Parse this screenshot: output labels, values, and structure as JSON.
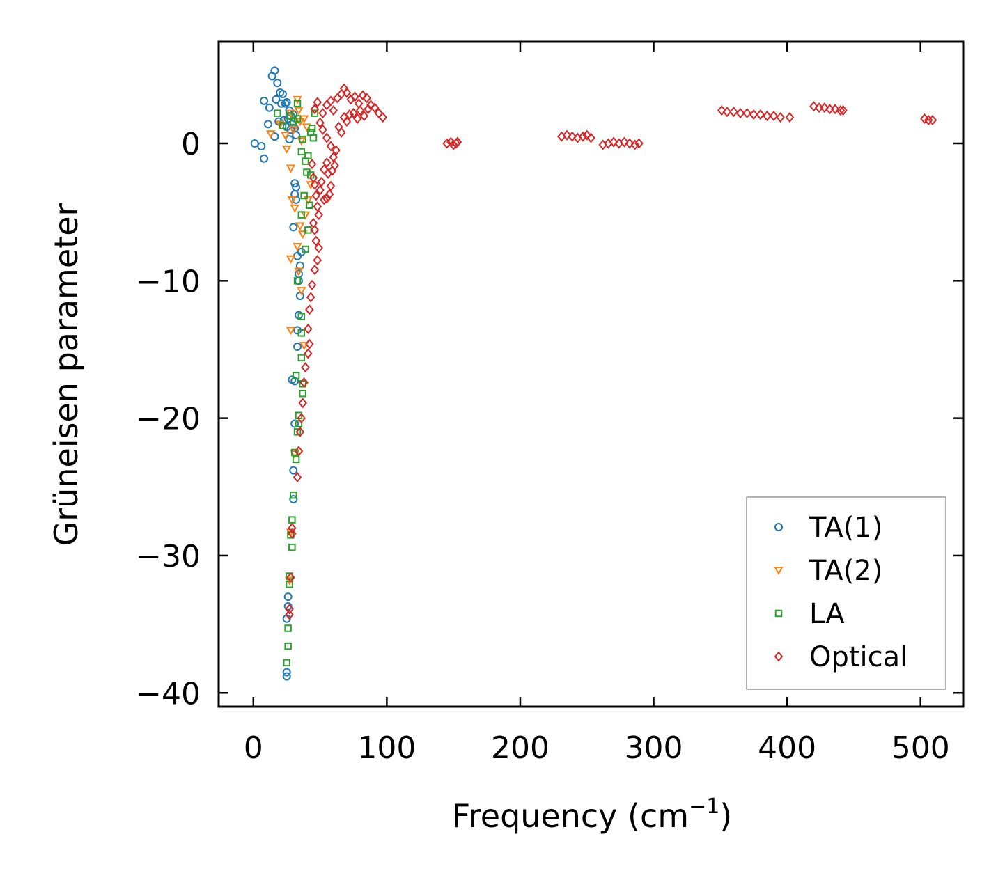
{
  "chart_data": {
    "type": "scatter",
    "title": "",
    "xlabel": "Frequency (cm",
    "xlabel_sup": "−1",
    "xlabel_close": ")",
    "ylabel": "Grüneisen parameter",
    "xlim": [
      -26,
      532
    ],
    "ylim": [
      -41,
      7.4
    ],
    "xticks": [
      0,
      100,
      200,
      300,
      400,
      500
    ],
    "xtick_labels": [
      "0",
      "100",
      "200",
      "300",
      "400",
      "500"
    ],
    "yticks": [
      -40,
      -30,
      -20,
      -10,
      0
    ],
    "ytick_labels": [
      "−40",
      "−30",
      "−20",
      "−10",
      "0"
    ],
    "grid": false,
    "legend_position": "lower-right",
    "series": [
      {
        "name": "TA(1)",
        "marker": "circle",
        "color": "#1f77b4",
        "points": [
          [
            1,
            0
          ],
          [
            6,
            -0.2
          ],
          [
            8,
            -1.1
          ],
          [
            8,
            3.1
          ],
          [
            11,
            1.4
          ],
          [
            12,
            2.6
          ],
          [
            14,
            4.9
          ],
          [
            16,
            5.3
          ],
          [
            16,
            0.5
          ],
          [
            17,
            3.2
          ],
          [
            18,
            4.4
          ],
          [
            19,
            1.6
          ],
          [
            20,
            3.7
          ],
          [
            21,
            2.9
          ],
          [
            22,
            3.6
          ],
          [
            23,
            1.7
          ],
          [
            24,
            2.9
          ],
          [
            25,
            1.2
          ],
          [
            25,
            3.0
          ],
          [
            26,
            1.8
          ],
          [
            27,
            0.3
          ],
          [
            27,
            2.4
          ],
          [
            28,
            1.0
          ],
          [
            28,
            2.0
          ],
          [
            29,
            1.4
          ],
          [
            30,
            2.1
          ],
          [
            31,
            1.1
          ],
          [
            32,
            0.6
          ],
          [
            30,
            -6.1
          ],
          [
            31,
            -2.9
          ],
          [
            31,
            -3.7
          ],
          [
            32,
            -3.2
          ],
          [
            32,
            -4.1
          ],
          [
            33,
            -8.2
          ],
          [
            34,
            -9.5
          ],
          [
            34,
            -10.0
          ],
          [
            35,
            -8.9
          ],
          [
            35,
            -11.1
          ],
          [
            36,
            -7.9
          ],
          [
            34,
            -12.5
          ],
          [
            33,
            -13.6
          ],
          [
            33,
            -14.8
          ],
          [
            29,
            -17.2
          ],
          [
            31,
            -17.3
          ],
          [
            31,
            -20.4
          ],
          [
            30,
            -23.8
          ],
          [
            30,
            -25.9
          ],
          [
            26,
            -33.0
          ],
          [
            26,
            -33.7
          ],
          [
            25,
            -34.6
          ],
          [
            25,
            -38.5
          ],
          [
            25,
            -38.8
          ]
        ]
      },
      {
        "name": "TA(2)",
        "marker": "triangle-down",
        "color": "#ff7f0e",
        "points": [
          [
            13,
            0.7
          ],
          [
            20,
            1.4
          ],
          [
            24,
            0.6
          ],
          [
            25,
            -0.4
          ],
          [
            28,
            2.2
          ],
          [
            30,
            1.0
          ],
          [
            33,
            3.2
          ],
          [
            34,
            2.4
          ],
          [
            35,
            1.6
          ],
          [
            36,
            0.2
          ],
          [
            38,
            1.8
          ],
          [
            40,
            1.2
          ],
          [
            28,
            -1.8
          ],
          [
            29,
            -4.1
          ],
          [
            31,
            -4.7
          ],
          [
            35,
            -6.0
          ],
          [
            37,
            -6.6
          ],
          [
            39,
            -5.2
          ],
          [
            41,
            -4.1
          ],
          [
            28,
            -8.4
          ],
          [
            33,
            -7.5
          ],
          [
            34,
            -9.3
          ],
          [
            28,
            -13.6
          ],
          [
            36,
            -10.7
          ],
          [
            38,
            -14.7
          ],
          [
            31,
            -22.6
          ],
          [
            28,
            -28.3
          ],
          [
            27,
            -31.8
          ],
          [
            43,
            -3.0
          ]
        ]
      },
      {
        "name": "LA",
        "marker": "square",
        "color": "#2ca02c",
        "points": [
          [
            18,
            2.2
          ],
          [
            22,
            1.3
          ],
          [
            27,
            2.0
          ],
          [
            30,
            1.6
          ],
          [
            33,
            1.8
          ],
          [
            33,
            2.9
          ],
          [
            36,
            -0.6
          ],
          [
            37,
            0.3
          ],
          [
            39,
            -1.3
          ],
          [
            40,
            -2.1
          ],
          [
            41,
            -0.9
          ],
          [
            43,
            -2.3
          ],
          [
            43,
            0.8
          ],
          [
            44,
            1.1
          ],
          [
            45,
            0.4
          ],
          [
            46,
            2.2
          ],
          [
            36,
            -5.2
          ],
          [
            38,
            -3.8
          ],
          [
            39,
            -7.7
          ],
          [
            41,
            -6.3
          ],
          [
            42,
            -4.5
          ],
          [
            33,
            -10.0
          ],
          [
            36,
            -12.6
          ],
          [
            36,
            -13.8
          ],
          [
            36,
            -15.6
          ],
          [
            37,
            -17.5
          ],
          [
            37,
            -18.2
          ],
          [
            34,
            -19.8
          ],
          [
            34,
            -20.4
          ],
          [
            32,
            -16.9
          ],
          [
            33,
            -21.0
          ],
          [
            32,
            -23.0
          ],
          [
            31,
            -22.5
          ],
          [
            30,
            -25.6
          ],
          [
            29,
            -27.4
          ],
          [
            28,
            -28.5
          ],
          [
            29,
            -29.4
          ],
          [
            27,
            -31.5
          ],
          [
            27,
            -32.1
          ],
          [
            26,
            -35.3
          ],
          [
            26,
            -36.6
          ],
          [
            25,
            -37.8
          ]
        ]
      },
      {
        "name": "Optical",
        "marker": "diamond",
        "color": "#d62728",
        "points": [
          [
            46,
            2.5
          ],
          [
            48,
            3.0
          ],
          [
            50,
            1.5
          ],
          [
            52,
            2.2
          ],
          [
            55,
            2.8
          ],
          [
            58,
            3.1
          ],
          [
            60,
            2.4
          ],
          [
            63,
            3.3
          ],
          [
            66,
            3.6
          ],
          [
            68,
            4.0
          ],
          [
            70,
            3.7
          ],
          [
            73,
            3.2
          ],
          [
            76,
            3.4
          ],
          [
            79,
            2.9
          ],
          [
            82,
            3.5
          ],
          [
            85,
            3.3
          ],
          [
            88,
            2.8
          ],
          [
            91,
            2.6
          ],
          [
            94,
            2.2
          ],
          [
            97,
            1.9
          ],
          [
            52,
            1.0
          ],
          [
            55,
            0.4
          ],
          [
            58,
            -0.2
          ],
          [
            60,
            -1.0
          ],
          [
            62,
            -0.5
          ],
          [
            64,
            1.2
          ],
          [
            66,
            0.8
          ],
          [
            68,
            1.9
          ],
          [
            70,
            1.6
          ],
          [
            72,
            2.1
          ],
          [
            75,
            2.2
          ],
          [
            78,
            1.8
          ],
          [
            80,
            2.4
          ],
          [
            83,
            2.0
          ],
          [
            86,
            2.5
          ],
          [
            44,
            -1.5
          ],
          [
            45,
            -2.5
          ],
          [
            46,
            -3.0
          ],
          [
            47,
            -3.8
          ],
          [
            48,
            -4.6
          ],
          [
            49,
            -5.2
          ],
          [
            50,
            -3.4
          ],
          [
            51,
            -2.8
          ],
          [
            53,
            -1.9
          ],
          [
            55,
            -1.4
          ],
          [
            56,
            -2.2
          ],
          [
            58,
            -3.1
          ],
          [
            59,
            -2.0
          ],
          [
            61,
            -1.6
          ],
          [
            45,
            -5.8
          ],
          [
            46,
            -6.3
          ],
          [
            47,
            -7.1
          ],
          [
            48,
            -8.5
          ],
          [
            49,
            -7.6
          ],
          [
            46,
            -9.2
          ],
          [
            44,
            -10.3
          ],
          [
            43,
            -11.2
          ],
          [
            42,
            -12.1
          ],
          [
            41,
            -13.5
          ],
          [
            42,
            -14.6
          ],
          [
            41,
            -15.3
          ],
          [
            39,
            -16.3
          ],
          [
            38,
            -17.4
          ],
          [
            37,
            -18.9
          ],
          [
            36,
            -20.0
          ],
          [
            35,
            -21.0
          ],
          [
            34,
            -22.4
          ],
          [
            33,
            -24.3
          ],
          [
            29,
            -28.0
          ],
          [
            29,
            -28.4
          ],
          [
            28,
            -31.6
          ],
          [
            27,
            -33.9
          ],
          [
            27,
            -34.3
          ],
          [
            53,
            -4.1
          ],
          [
            55,
            -4.0
          ],
          [
            57,
            -3.7
          ],
          [
            145,
            0
          ],
          [
            148,
            0.1
          ],
          [
            150,
            -0.1
          ],
          [
            152,
            0
          ],
          [
            153,
            0.1
          ],
          [
            231,
            0.5
          ],
          [
            235,
            0.6
          ],
          [
            239,
            0.5
          ],
          [
            243,
            0.4
          ],
          [
            247,
            0.5
          ],
          [
            250,
            0.6
          ],
          [
            253,
            0.4
          ],
          [
            262,
            -0.1
          ],
          [
            266,
            0
          ],
          [
            270,
            0.1
          ],
          [
            274,
            0
          ],
          [
            278,
            0.1
          ],
          [
            282,
            0
          ],
          [
            286,
            -0.1
          ],
          [
            289,
            0
          ],
          [
            351,
            2.4
          ],
          [
            355,
            2.3
          ],
          [
            360,
            2.3
          ],
          [
            365,
            2.2
          ],
          [
            370,
            2.2
          ],
          [
            375,
            2.1
          ],
          [
            380,
            2.1
          ],
          [
            385,
            2.0
          ],
          [
            390,
            2.0
          ],
          [
            395,
            1.9
          ],
          [
            402,
            1.9
          ],
          [
            420,
            2.7
          ],
          [
            424,
            2.6
          ],
          [
            428,
            2.6
          ],
          [
            432,
            2.5
          ],
          [
            436,
            2.5
          ],
          [
            440,
            2.4
          ],
          [
            442,
            2.4
          ],
          [
            503,
            1.8
          ],
          [
            506,
            1.7
          ],
          [
            509,
            1.7
          ]
        ]
      }
    ]
  }
}
